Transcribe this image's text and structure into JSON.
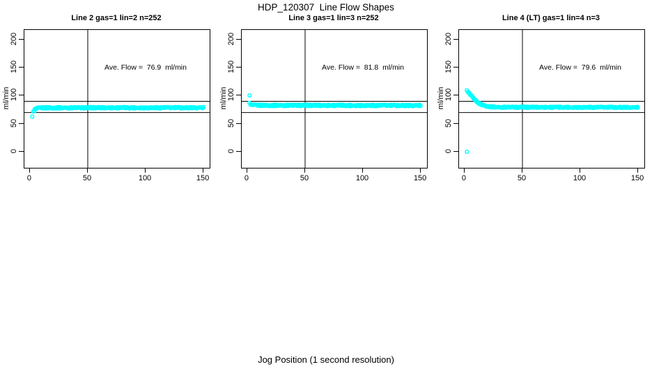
{
  "figure": {
    "title": "HDP_120307  Line Flow Shapes",
    "xlabel": "Jog Position (1 second resolution)",
    "background_color": "#FFFFFF",
    "axis_color": "#000000"
  },
  "chart_data": [
    {
      "type": "scatter",
      "title": "Line 2 gas=1 lin=2 n=252",
      "annotation": "Ave. Flow =  76.9  ml/min",
      "ave_flow_ml_min": 76.9,
      "n_points": 252,
      "ylabel": "ml/min",
      "x_ticks": [
        0,
        50,
        100,
        150
      ],
      "y_ticks": [
        0,
        50,
        100,
        150,
        200
      ],
      "xlim": [
        -4.8,
        155.4
      ],
      "ylim": [
        -28.6,
        217.4
      ],
      "hlines": [
        70,
        90
      ],
      "vlines": [
        50
      ],
      "marker_color": "#00FFFF",
      "annotation_pos": [
        100,
        150
      ],
      "outliers": [
        [
          2,
          63
        ]
      ],
      "band": {
        "x_start": 3,
        "x_end": 150,
        "step": 0.6,
        "jitter": 1.4,
        "profile": [
          [
            3,
            71
          ],
          [
            4,
            74.5
          ],
          [
            5,
            76.2
          ],
          [
            6,
            77.2
          ],
          [
            8,
            78.0
          ],
          [
            10,
            78.3
          ],
          [
            15,
            78.5
          ],
          [
            150,
            78.7
          ]
        ]
      }
    },
    {
      "type": "scatter",
      "title": "Line 3 gas=1 lin=3 n=252",
      "annotation": "Ave. Flow =  81.8  ml/min",
      "ave_flow_ml_min": 81.8,
      "n_points": 252,
      "ylabel": "ml/min",
      "x_ticks": [
        0,
        50,
        100,
        150
      ],
      "y_ticks": [
        0,
        50,
        100,
        150,
        200
      ],
      "xlim": [
        -4.8,
        155.4
      ],
      "ylim": [
        -28.6,
        217.4
      ],
      "hlines": [
        70,
        90
      ],
      "vlines": [
        50
      ],
      "marker_color": "#00FFFF",
      "annotation_pos": [
        100,
        150
      ],
      "outliers": [
        [
          2,
          100.5
        ]
      ],
      "band": {
        "x_start": 2,
        "x_end": 150,
        "step": 0.6,
        "jitter": 1.4,
        "profile": [
          [
            2,
            86.5
          ],
          [
            3,
            84.0
          ],
          [
            4,
            83.3
          ],
          [
            6,
            83.0
          ],
          [
            10,
            82.9
          ],
          [
            150,
            82.6
          ]
        ]
      }
    },
    {
      "type": "scatter",
      "title": "Line 4 (LT) gas=1 lin=4 n=3",
      "annotation": "Ave. Flow =  79.6  ml/min",
      "ave_flow_ml_min": 79.6,
      "n_points": 3,
      "ylabel": "ml/min",
      "x_ticks": [
        0,
        50,
        100,
        150
      ],
      "y_ticks": [
        0,
        50,
        100,
        150,
        200
      ],
      "xlim": [
        -4.8,
        155.4
      ],
      "ylim": [
        -28.6,
        217.4
      ],
      "hlines": [
        70,
        90
      ],
      "vlines": [
        50
      ],
      "marker_color": "#00FFFF",
      "annotation_pos": [
        100,
        150
      ],
      "outliers": [
        [
          2,
          0
        ]
      ],
      "band": {
        "x_start": 2,
        "x_end": 150,
        "step": 0.6,
        "jitter": 1.2,
        "profile": [
          [
            2,
            109
          ],
          [
            3,
            106.5
          ],
          [
            4,
            104
          ],
          [
            5,
            101.5
          ],
          [
            6,
            99
          ],
          [
            7,
            96.5
          ],
          [
            8,
            94.2
          ],
          [
            9,
            92.2
          ],
          [
            10,
            90.3
          ],
          [
            11,
            88.7
          ],
          [
            12,
            87.3
          ],
          [
            13,
            86.0
          ],
          [
            14,
            85.0
          ],
          [
            15,
            84.1
          ],
          [
            16,
            83.3
          ],
          [
            17,
            82.7
          ],
          [
            18,
            82.1
          ],
          [
            19,
            81.6
          ],
          [
            20,
            81.2
          ],
          [
            22,
            80.6
          ],
          [
            24,
            80.2
          ],
          [
            26,
            79.9
          ],
          [
            28,
            79.7
          ],
          [
            30,
            79.6
          ],
          [
            40,
            79.5
          ],
          [
            60,
            79.5
          ],
          [
            100,
            79.4
          ],
          [
            150,
            79.2
          ]
        ]
      }
    }
  ]
}
